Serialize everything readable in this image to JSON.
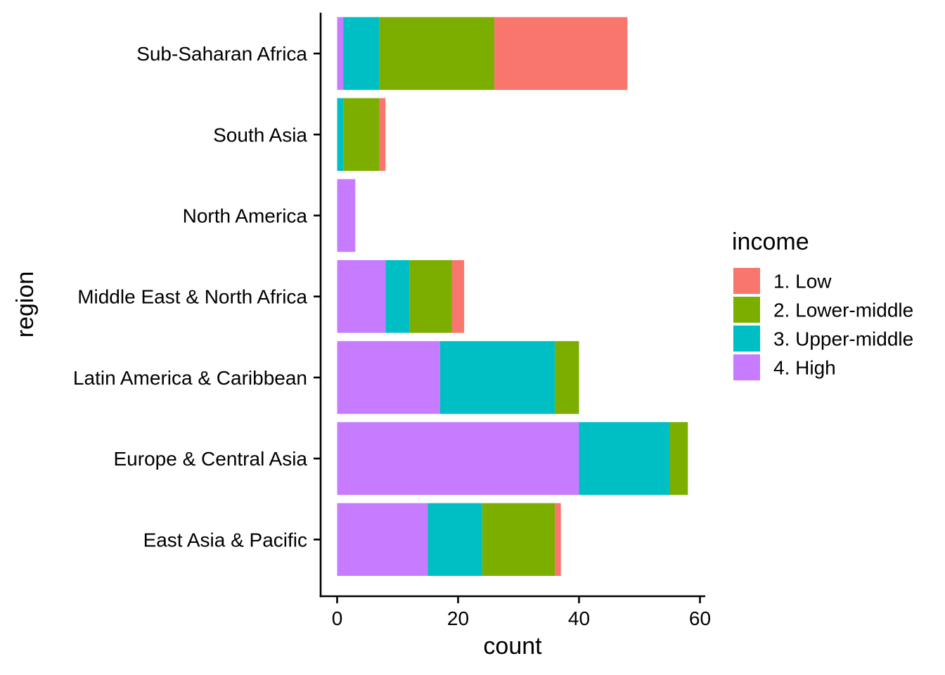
{
  "chart_data": {
    "type": "bar",
    "orientation": "horizontal",
    "stacked": true,
    "title": "",
    "xlabel": "count",
    "ylabel": "region",
    "xlim": [
      0,
      60
    ],
    "x_ticks": [
      0,
      20,
      40,
      60
    ],
    "grid": false,
    "legend_position": "right",
    "legend_title": "income",
    "categories": [
      "East Asia & Pacific",
      "Europe & Central Asia",
      "Latin America & Caribbean",
      "Middle East & North Africa",
      "North America",
      "South Asia",
      "Sub-Saharan Africa"
    ],
    "series": [
      {
        "name": "1. Low",
        "color": "#F8766D",
        "values": [
          1,
          0,
          0,
          2,
          0,
          1,
          22
        ]
      },
      {
        "name": "2. Lower-middle",
        "color": "#7CAE00",
        "values": [
          12,
          3,
          4,
          7,
          0,
          6,
          19
        ]
      },
      {
        "name": "3. Upper-middle",
        "color": "#00BFC4",
        "values": [
          9,
          15,
          19,
          4,
          0,
          1,
          6
        ]
      },
      {
        "name": "4. High",
        "color": "#C77CFF",
        "values": [
          15,
          40,
          17,
          8,
          3,
          0,
          1
        ]
      }
    ]
  }
}
